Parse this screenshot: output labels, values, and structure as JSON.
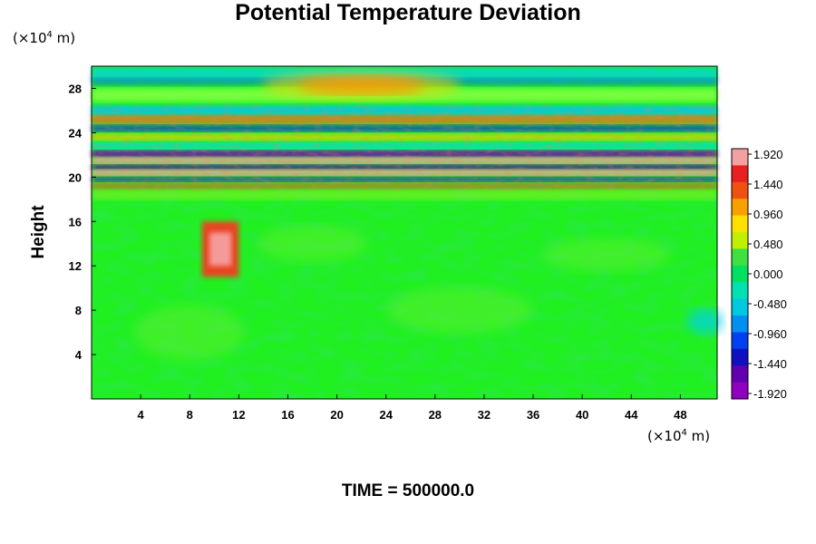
{
  "title": "Potential Temperature Deviation",
  "y_unit": {
    "pre": "(×10",
    "exp": "4",
    "post": " m)"
  },
  "x_unit": {
    "pre": "(×10",
    "exp": "4",
    "post": " m)"
  },
  "ylabel": "Height",
  "time_label": "TIME = 500000.0",
  "chart_data": {
    "type": "heatmap",
    "title": "Potential Temperature Deviation",
    "xlabel": "",
    "ylabel": "Height",
    "x_unit": "(×10^4 m)",
    "y_unit": "(×10^4 m)",
    "xlim": [
      0,
      51
    ],
    "ylim": [
      0,
      30
    ],
    "x_ticks": [
      4,
      8,
      12,
      16,
      20,
      24,
      28,
      32,
      36,
      40,
      44,
      48
    ],
    "y_ticks": [
      4,
      8,
      12,
      16,
      20,
      24,
      28
    ],
    "colorbar": {
      "min": -1.92,
      "max": 1.92,
      "tick_labels": [
        "1.920",
        "1.440",
        "0.960",
        "0.480",
        "0.000",
        "-0.480",
        "-0.960",
        "-1.440",
        "-1.920"
      ],
      "colors_top_to_bottom": [
        "#f5a0a0",
        "#e82020",
        "#f05010",
        "#f7a000",
        "#ffe000",
        "#c0f000",
        "#40e040",
        "#00e060",
        "#00e0b0",
        "#00c8e0",
        "#0090f0",
        "#0040f0",
        "#1010c0",
        "#6000b0",
        "#9000c0"
      ]
    },
    "grid": false,
    "legend": "colorbar-right"
  }
}
